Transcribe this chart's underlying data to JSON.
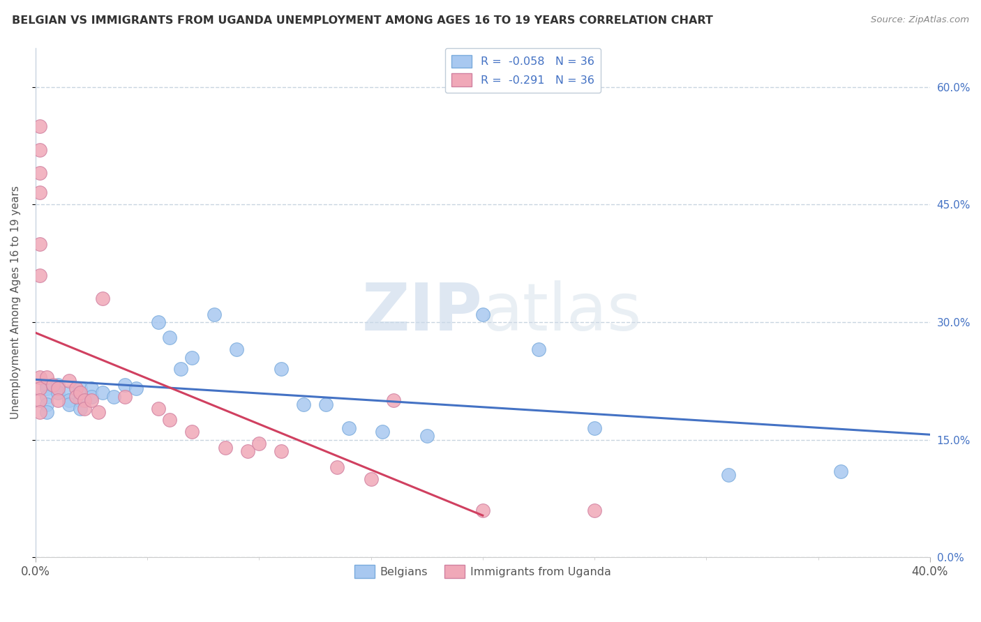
{
  "title": "BELGIAN VS IMMIGRANTS FROM UGANDA UNEMPLOYMENT AMONG AGES 16 TO 19 YEARS CORRELATION CHART",
  "source": "Source: ZipAtlas.com",
  "ylabel": "Unemployment Among Ages 16 to 19 years",
  "belgians_x": [
    0.005,
    0.005,
    0.005,
    0.005,
    0.005,
    0.01,
    0.01,
    0.015,
    0.015,
    0.015,
    0.02,
    0.02,
    0.02,
    0.025,
    0.025,
    0.03,
    0.035,
    0.04,
    0.045,
    0.055,
    0.06,
    0.065,
    0.07,
    0.08,
    0.09,
    0.11,
    0.12,
    0.13,
    0.14,
    0.155,
    0.175,
    0.2,
    0.225,
    0.25,
    0.31,
    0.36
  ],
  "belgians_y": [
    0.22,
    0.215,
    0.205,
    0.195,
    0.185,
    0.22,
    0.21,
    0.21,
    0.2,
    0.195,
    0.215,
    0.2,
    0.19,
    0.215,
    0.205,
    0.21,
    0.205,
    0.22,
    0.215,
    0.3,
    0.28,
    0.24,
    0.255,
    0.31,
    0.265,
    0.24,
    0.195,
    0.195,
    0.165,
    0.16,
    0.155,
    0.31,
    0.265,
    0.165,
    0.105,
    0.11
  ],
  "uganda_x": [
    0.002,
    0.002,
    0.002,
    0.002,
    0.002,
    0.002,
    0.002,
    0.002,
    0.002,
    0.002,
    0.005,
    0.008,
    0.01,
    0.01,
    0.015,
    0.018,
    0.018,
    0.02,
    0.022,
    0.022,
    0.025,
    0.028,
    0.03,
    0.04,
    0.055,
    0.06,
    0.07,
    0.085,
    0.095,
    0.1,
    0.11,
    0.135,
    0.15,
    0.16,
    0.2,
    0.25
  ],
  "uganda_y": [
    0.55,
    0.52,
    0.49,
    0.465,
    0.4,
    0.36,
    0.23,
    0.215,
    0.2,
    0.185,
    0.23,
    0.22,
    0.215,
    0.2,
    0.225,
    0.215,
    0.205,
    0.21,
    0.2,
    0.19,
    0.2,
    0.185,
    0.33,
    0.205,
    0.19,
    0.175,
    0.16,
    0.14,
    0.135,
    0.145,
    0.135,
    0.115,
    0.1,
    0.2,
    0.06,
    0.06
  ],
  "belgian_R": -0.058,
  "belgian_N": 36,
  "uganda_R": -0.291,
  "uganda_N": 36,
  "xlim": [
    0.0,
    0.4
  ],
  "ylim": [
    0.0,
    0.65
  ],
  "yticks": [
    0.0,
    0.15,
    0.3,
    0.45,
    0.6
  ],
  "ytick_labels": [
    "0.0%",
    "15.0%",
    "30.0%",
    "45.0%",
    "60.0%"
  ],
  "xtick_labels": [
    "0.0%",
    "40.0%"
  ],
  "belgian_color": "#a8c8f0",
  "uganda_color": "#f0a8b8",
  "belgian_line_color": "#4472c4",
  "uganda_line_color": "#d04060",
  "watermark_zip": "ZIP",
  "watermark_atlas": "atlas",
  "background_color": "#ffffff",
  "grid_color": "#c8d4e0",
  "title_color": "#333333",
  "source_color": "#888888",
  "legend_text_color": "#4472c4"
}
